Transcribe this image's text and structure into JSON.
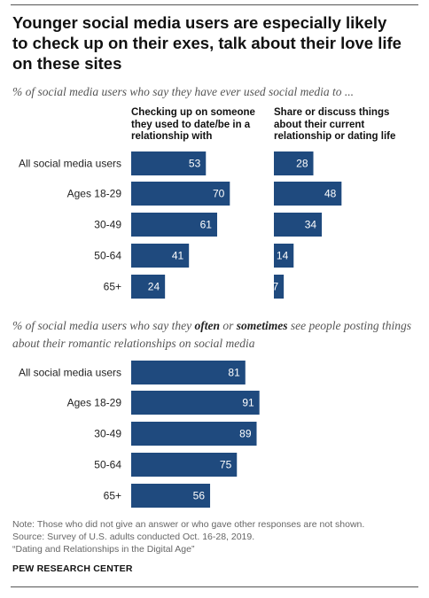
{
  "title": "Younger social media users are especially likely to check up on their exes, talk about their love life on these sites",
  "subtitle_1": "% of social media users who say they have ever used social media to ...",
  "subtitle_2_parts": [
    {
      "text": "% of social media users who say they ",
      "style": "normal"
    },
    {
      "text": "often",
      "style": "bold"
    },
    {
      "text": " or ",
      "style": "normal"
    },
    {
      "text": "sometimes",
      "style": "bold"
    },
    {
      "text": " see people posting things about their romantic relationships on social media",
      "style": "normal"
    }
  ],
  "notes": {
    "note": "Note: Those who did not give an answer or who gave other responses are not shown.",
    "source": "Source: Survey of U.S. adults conducted Oct. 16-28, 2019.",
    "report": "“Dating and Relationships in the Digital Age”",
    "org": "PEW RESEARCH CENTER"
  },
  "colors": {
    "bar": "#1f4a7e",
    "bar_label": "#ffffff",
    "text": "#222222"
  },
  "chart_data": [
    {
      "type": "bar",
      "orientation": "horizontal",
      "categories": [
        "All social media users",
        "Ages 18-29",
        "30-49",
        "50-64",
        "65+"
      ],
      "series": [
        {
          "name": "Checking up on someone they used to date/be in a relationship with",
          "values": [
            53,
            70,
            61,
            41,
            24
          ]
        },
        {
          "name": "Share or discuss things about their current relationship or dating life",
          "values": [
            28,
            48,
            34,
            14,
            7
          ]
        }
      ],
      "xlim": [
        0,
        100
      ]
    },
    {
      "type": "bar",
      "orientation": "horizontal",
      "categories": [
        "All social media users",
        "Ages 18-29",
        "30-49",
        "50-64",
        "65+"
      ],
      "series": [
        {
          "values": [
            81,
            91,
            89,
            75,
            56
          ]
        }
      ],
      "xlim": [
        0,
        100
      ]
    }
  ]
}
